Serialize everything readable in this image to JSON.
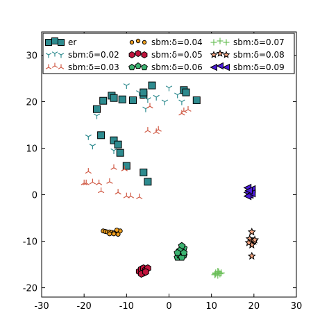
{
  "chart_data": {
    "type": "scatter",
    "xlim": [
      -30,
      30
    ],
    "ylim": [
      -22,
      35
    ],
    "xticks": [
      -30,
      -20,
      -10,
      0,
      10,
      20,
      30
    ],
    "yticks": [
      -20,
      -10,
      0,
      10,
      20,
      30
    ],
    "grid": false,
    "legend_position": "top",
    "series": [
      {
        "name": "er",
        "marker": "square",
        "color": "#2e8b8f",
        "points": [
          [
            -17,
            18.4
          ],
          [
            -15.5,
            20.2
          ],
          [
            -13.5,
            21.3
          ],
          [
            -13,
            20.8
          ],
          [
            -11,
            20.5
          ],
          [
            -8.5,
            20.3
          ],
          [
            -6,
            21.5
          ],
          [
            -6,
            22
          ],
          [
            -4,
            23.5
          ],
          [
            3.5,
            22.5
          ],
          [
            4,
            22
          ],
          [
            6.5,
            20.3
          ],
          [
            -16,
            12.8
          ],
          [
            -13,
            11.7
          ],
          [
            -12,
            10.8
          ],
          [
            -11.5,
            9
          ],
          [
            -10,
            6.2
          ],
          [
            -6,
            4.8
          ],
          [
            -5,
            2.8
          ]
        ]
      },
      {
        "name": "sbm:δ=0.02",
        "marker": "tri_down",
        "color": "#2e8b8f",
        "points": [
          [
            -10,
            23.5
          ],
          [
            -7,
            22
          ],
          [
            -5,
            20.5
          ],
          [
            -3,
            21
          ],
          [
            0,
            23
          ],
          [
            -1,
            20
          ],
          [
            -5.5,
            18.5
          ],
          [
            2,
            21.5
          ],
          [
            3,
            20
          ],
          [
            -17,
            17
          ],
          [
            -19,
            12.5
          ],
          [
            -18,
            10.5
          ],
          [
            -13,
            9.5
          ]
        ]
      },
      {
        "name": "sbm:δ=0.03",
        "marker": "tri_up",
        "color": "#d05a45",
        "points": [
          [
            -19,
            5
          ],
          [
            -19.5,
            2.5
          ],
          [
            -20,
            2.5
          ],
          [
            -18,
            2.7
          ],
          [
            -16.5,
            2.5
          ],
          [
            -14,
            2.8
          ],
          [
            -16,
            0.8
          ],
          [
            -12,
            0.5
          ],
          [
            -10,
            -0.3
          ],
          [
            -9,
            -0.3
          ],
          [
            -7,
            -0.5
          ],
          [
            -13,
            5.8
          ],
          [
            -10.5,
            5.5
          ],
          [
            -5,
            13.8
          ],
          [
            -3,
            13.5
          ],
          [
            -2.5,
            14
          ],
          [
            3,
            17.5
          ],
          [
            4.5,
            18.3
          ],
          [
            3.5,
            18
          ],
          [
            -4.5,
            19
          ]
        ]
      },
      {
        "name": "sbm:δ=0.04",
        "marker": "circle",
        "color": "#f0a020",
        "points": [
          [
            -15.5,
            -7.8
          ],
          [
            -15,
            -7.9
          ],
          [
            -14.5,
            -8
          ],
          [
            -14,
            -8
          ],
          [
            -13.5,
            -8.1
          ],
          [
            -13,
            -8.2
          ],
          [
            -12.5,
            -8.2
          ],
          [
            -12,
            -8.1
          ],
          [
            -11.5,
            -7.8
          ],
          [
            -14,
            -8.4
          ],
          [
            -13,
            -8.4
          ],
          [
            -12.3,
            -7.6
          ],
          [
            -12,
            -8.5
          ]
        ]
      },
      {
        "name": "sbm:δ=0.05",
        "marker": "hexagon",
        "color": "#c0143c",
        "points": [
          [
            -7,
            -16.5
          ],
          [
            -6.5,
            -16
          ],
          [
            -6,
            -15.8
          ],
          [
            -5.5,
            -16.2
          ],
          [
            -6,
            -16.8
          ],
          [
            -5,
            -15.8
          ],
          [
            -6.5,
            -17
          ],
          [
            -5.5,
            -16.6
          ]
        ]
      },
      {
        "name": "sbm:δ=0.06",
        "marker": "pentagon",
        "color": "#3cb371",
        "points": [
          [
            2,
            -13.5
          ],
          [
            2.5,
            -13
          ],
          [
            3,
            -12.5
          ],
          [
            3,
            -12
          ],
          [
            3.5,
            -11.5
          ],
          [
            3,
            -11
          ],
          [
            2.5,
            -12
          ],
          [
            3.5,
            -13
          ],
          [
            2,
            -12.5
          ],
          [
            3,
            -13.5
          ],
          [
            3.5,
            -12.5
          ]
        ]
      },
      {
        "name": "sbm:δ=0.07",
        "marker": "plus",
        "color": "#6bbf59",
        "points": [
          [
            11,
            -17
          ],
          [
            11.5,
            -16.5
          ],
          [
            12,
            -17
          ],
          [
            11,
            -16.8
          ],
          [
            11.5,
            -17.3
          ],
          [
            12.3,
            -16.8
          ],
          [
            10.8,
            -17.2
          ],
          [
            11.7,
            -16.6
          ]
        ]
      },
      {
        "name": "sbm:δ=0.08",
        "marker": "star",
        "color": "#f4a582",
        "points": [
          [
            19.5,
            -8
          ],
          [
            19,
            -9.5
          ],
          [
            19.5,
            -10
          ],
          [
            20,
            -10
          ],
          [
            19.5,
            -10.8
          ],
          [
            18.8,
            -10.3
          ],
          [
            20.2,
            -9.7
          ],
          [
            19.5,
            -13.2
          ]
        ]
      },
      {
        "name": "sbm:δ=0.09",
        "marker": "triangle_left",
        "color": "#4b1bd8",
        "points": [
          [
            18.5,
            1.5
          ],
          [
            19.5,
            1.2
          ],
          [
            18.5,
            0.5
          ],
          [
            19,
            0
          ],
          [
            18.5,
            -0.3
          ],
          [
            19.5,
            0.3
          ],
          [
            18.8,
            0.9
          ]
        ]
      }
    ]
  }
}
